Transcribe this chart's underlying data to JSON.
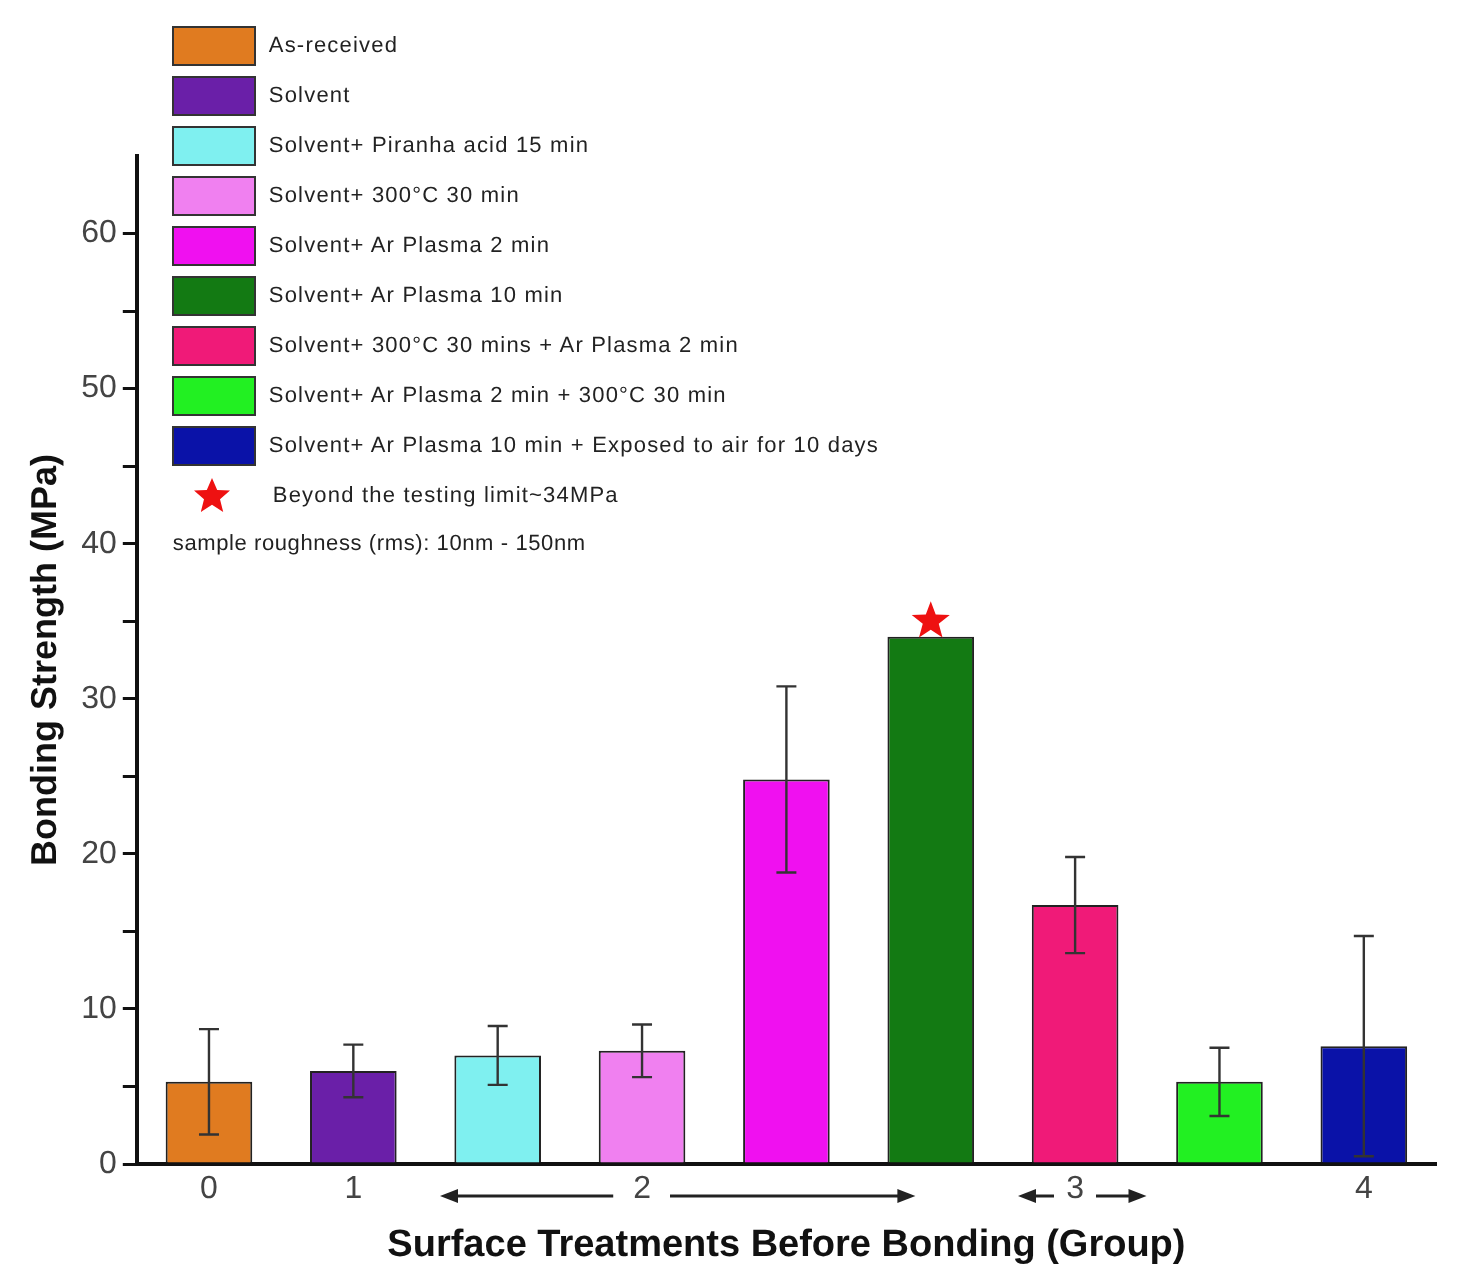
{
  "chart_data": {
    "type": "bar",
    "xlabel": "Surface Treatments Before Bonding (Group)",
    "ylabel": "Bonding Strength (MPa)",
    "categories": [
      "0",
      "1",
      null,
      "2",
      null,
      null,
      "3",
      null,
      "4"
    ],
    "ylim": [
      0,
      65
    ],
    "yticks": [
      0,
      {
        "value": 5,
        "label": null
      },
      10,
      {
        "value": 15,
        "label": null
      },
      20,
      {
        "value": 25,
        "label": null
      },
      30,
      {
        "value": 35,
        "label": null
      },
      40,
      {
        "value": 45,
        "label": null
      },
      50,
      {
        "value": 55,
        "label": null
      },
      60
    ],
    "grid": false,
    "legend": "top left",
    "series": [
      {
        "name": "As-received",
        "color": "#e07b20",
        "values": [
          5.3,
          null,
          null,
          null,
          null,
          null,
          null,
          null,
          null
        ],
        "errors": [
          3.4,
          null,
          null,
          null,
          null,
          null,
          null,
          null,
          null
        ]
      },
      {
        "name": "Solvent",
        "color": "#6a1fa8",
        "values": [
          null,
          6.0,
          null,
          null,
          null,
          null,
          null,
          null,
          null
        ],
        "errors": [
          null,
          1.7,
          null,
          null,
          null,
          null,
          null,
          null,
          null
        ]
      },
      {
        "name": "Solvent+ Piranha acid 15 min",
        "color": "#7ff0f0",
        "values": [
          null,
          null,
          7.0,
          null,
          null,
          null,
          null,
          null,
          null
        ],
        "errors": [
          null,
          null,
          1.9,
          null,
          null,
          null,
          null,
          null,
          null
        ]
      },
      {
        "name": "Solvent+ 300°C 30 min",
        "color": "#f080f0",
        "values": [
          null,
          null,
          null,
          7.3,
          null,
          null,
          null,
          null,
          null
        ],
        "errors": [
          null,
          null,
          null,
          1.7,
          null,
          null,
          null,
          null,
          null
        ]
      },
      {
        "name": "Solvent+ Ar Plasma 2 min",
        "color": "#f010f0",
        "values": [
          null,
          null,
          null,
          null,
          24.8,
          null,
          null,
          null,
          null
        ],
        "errors": [
          null,
          null,
          null,
          null,
          6.0,
          null,
          null,
          null,
          null
        ]
      },
      {
        "name": "Solvent+ Ar Plasma 10 min",
        "color": "#137a13",
        "values": [
          null,
          null,
          null,
          null,
          null,
          34.0,
          null,
          null,
          null
        ]
      },
      {
        "name": "Solvent+ 300°C 30 mins + Ar Plasma 2 min",
        "color": "#f01a78",
        "values": [
          null,
          null,
          null,
          null,
          null,
          null,
          16.7,
          null,
          null
        ],
        "errors": [
          null,
          null,
          null,
          null,
          null,
          null,
          3.1,
          null,
          null
        ]
      },
      {
        "name": "Solvent+ Ar Plasma 2 min + 300°C 30 min",
        "color": "#22f022",
        "values": [
          null,
          null,
          null,
          null,
          null,
          null,
          null,
          5.3,
          null
        ],
        "errors": [
          null,
          null,
          null,
          null,
          null,
          null,
          null,
          2.2,
          null
        ]
      },
      {
        "name": "Solvent+ Ar Plasma 10 min + Exposed to air for 10 days",
        "color": "#0a12a8",
        "values": [
          null,
          null,
          null,
          null,
          null,
          null,
          null,
          null,
          7.6
        ],
        "errors": [
          null,
          null,
          null,
          null,
          null,
          null,
          null,
          null,
          7.1
        ]
      },
      {
        "name": "Beyond the testing limit~34MPa",
        "type": "scatter",
        "marker": "star",
        "color": "#ee1111",
        "values": [
          null,
          null,
          null,
          null,
          null,
          35,
          null,
          null,
          null
        ]
      }
    ],
    "annotations": [
      "sample roughness (rms): 10nm - 150nm"
    ]
  }
}
